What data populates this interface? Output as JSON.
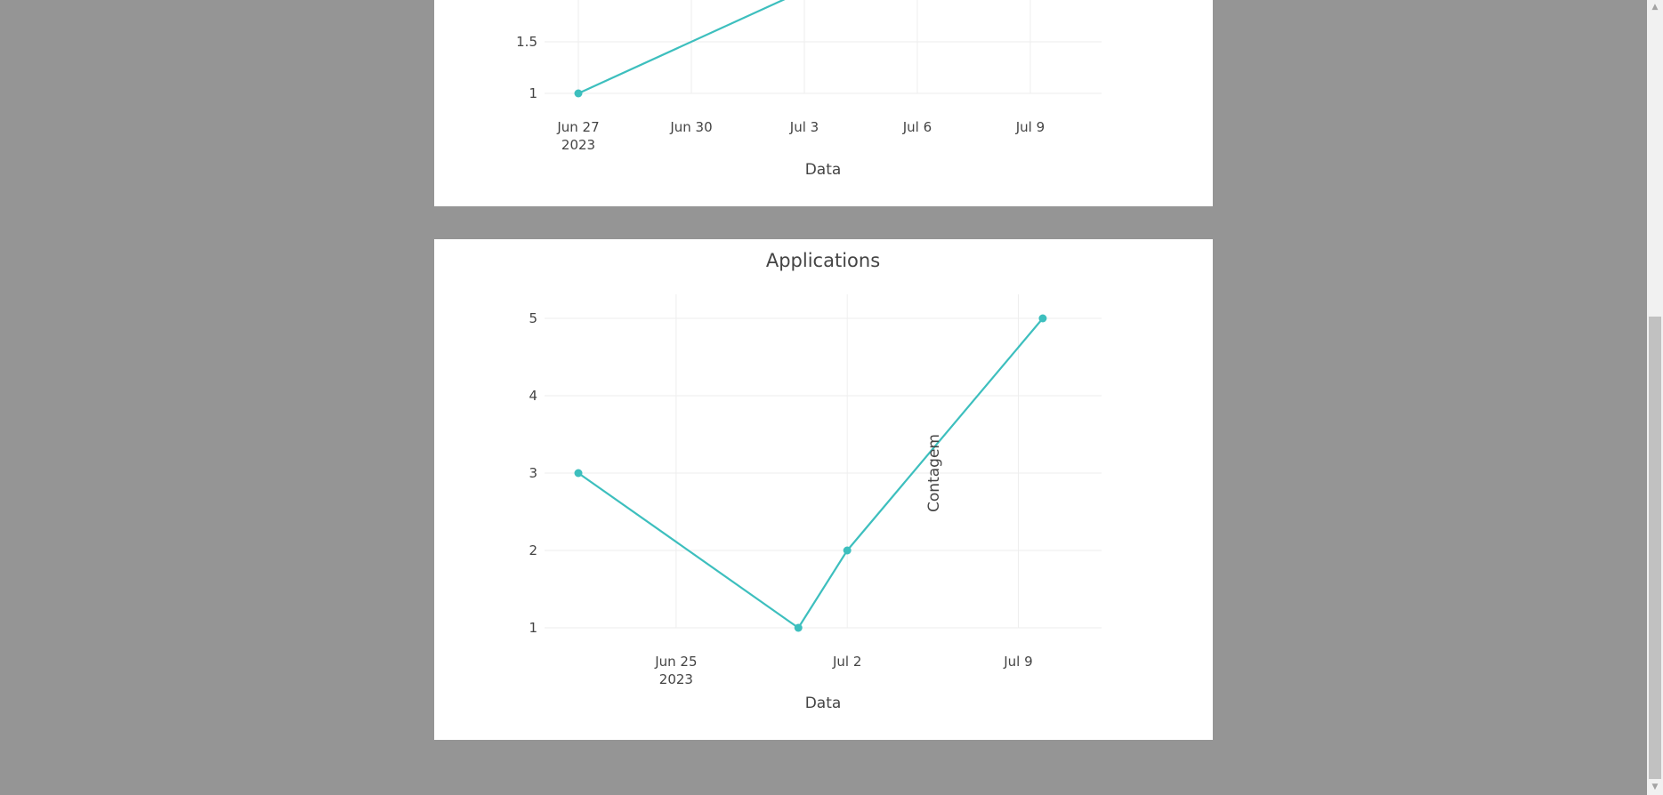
{
  "colors": {
    "line": "#3dbfbe",
    "grid": "#eeeeee"
  },
  "chart_data": [
    {
      "type": "line",
      "title": "",
      "xlabel": "Data",
      "ylabel": "",
      "x": [
        "2023-06-27",
        "2023-07-03"
      ],
      "y": [
        1,
        2
      ],
      "xlim": [
        "2023-06-27",
        "2023-07-11"
      ],
      "x_ticks": [
        {
          "date": "2023-06-27",
          "label": "Jun 27",
          "sublabel": "2023"
        },
        {
          "date": "2023-06-30",
          "label": "Jun 30"
        },
        {
          "date": "2023-07-03",
          "label": "Jul 3"
        },
        {
          "date": "2023-07-06",
          "label": "Jul 6"
        },
        {
          "date": "2023-07-09",
          "label": "Jul 9"
        }
      ],
      "y_ticks": [
        1,
        1.5
      ],
      "grid": true
    },
    {
      "type": "line",
      "title": "Applications",
      "xlabel": "Data",
      "ylabel": "Contagem",
      "x": [
        "2023-06-21",
        "2023-06-30",
        "2023-07-02",
        "2023-07-10"
      ],
      "y": [
        3,
        1,
        2,
        5
      ],
      "xlim": [
        "2023-06-21",
        "2023-07-11"
      ],
      "ylim": [
        0.8,
        5.3
      ],
      "x_ticks": [
        {
          "date": "2023-06-25",
          "label": "Jun 25",
          "sublabel": "2023"
        },
        {
          "date": "2023-07-02",
          "label": "Jul 2"
        },
        {
          "date": "2023-07-09",
          "label": "Jul 9"
        }
      ],
      "y_ticks": [
        1,
        2,
        3,
        4,
        5
      ],
      "grid": true
    }
  ]
}
